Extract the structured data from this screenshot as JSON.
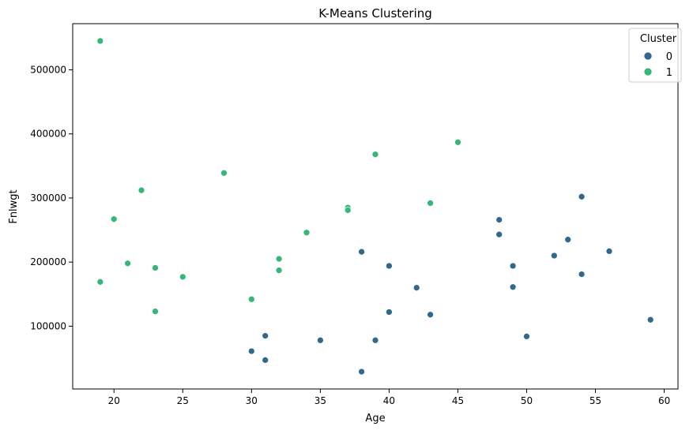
{
  "chart_data": {
    "type": "scatter",
    "title": "K-Means Clustering",
    "xlabel": "Age",
    "ylabel": "Fnlwgt",
    "xlim": [
      17.0,
      61.0
    ],
    "ylim": [
      2000,
      572000
    ],
    "xticks": [
      20,
      25,
      30,
      35,
      40,
      45,
      50,
      55,
      60
    ],
    "yticks": [
      100000,
      200000,
      300000,
      400000,
      500000
    ],
    "grid": false,
    "legend": {
      "title": "Cluster",
      "position": "top-right"
    },
    "series": [
      {
        "name": "0",
        "color": "#31688e",
        "points": [
          [
            54,
            302000
          ],
          [
            48,
            266000
          ],
          [
            48,
            243000
          ],
          [
            53,
            235000
          ],
          [
            56,
            217000
          ],
          [
            38,
            216000
          ],
          [
            52,
            210000
          ],
          [
            40,
            194000
          ],
          [
            49,
            194000
          ],
          [
            54,
            181000
          ],
          [
            42,
            160000
          ],
          [
            49,
            161000
          ],
          [
            40,
            122000
          ],
          [
            43,
            118000
          ],
          [
            59,
            110000
          ],
          [
            31,
            85000
          ],
          [
            50,
            84000
          ],
          [
            35,
            78000
          ],
          [
            39,
            78000
          ],
          [
            30,
            61000
          ],
          [
            31,
            47000
          ],
          [
            38,
            29000
          ]
        ]
      },
      {
        "name": "1",
        "color": "#35b779",
        "points": [
          [
            19,
            545000
          ],
          [
            45,
            387000
          ],
          [
            39,
            368000
          ],
          [
            28,
            339000
          ],
          [
            22,
            312000
          ],
          [
            43,
            292000
          ],
          [
            37,
            285000
          ],
          [
            37,
            281000
          ],
          [
            20,
            267000
          ],
          [
            34,
            246000
          ],
          [
            32,
            205000
          ],
          [
            21,
            198000
          ],
          [
            23,
            191000
          ],
          [
            32,
            187000
          ],
          [
            25,
            177000
          ],
          [
            19,
            169000
          ],
          [
            30,
            142000
          ],
          [
            23,
            123000
          ]
        ]
      }
    ]
  }
}
